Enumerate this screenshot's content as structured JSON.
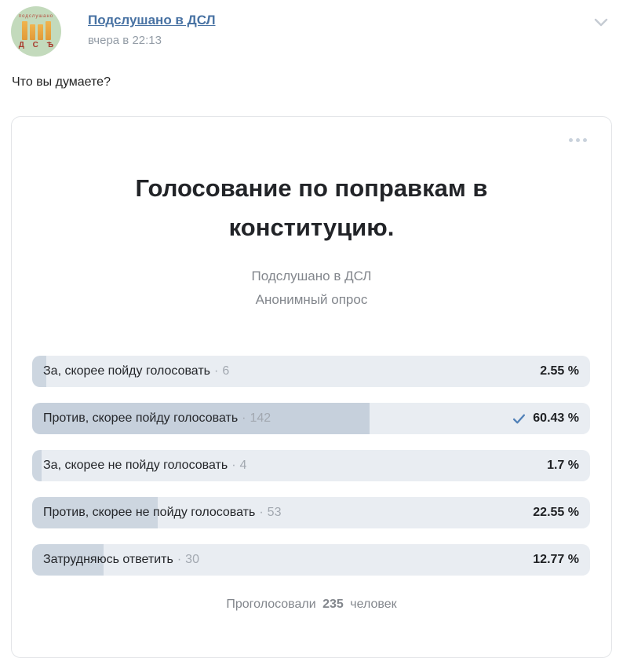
{
  "post": {
    "author": "Подслушано в ДСЛ",
    "timestamp": "вчера в 22:13",
    "text": "Что вы думаете?",
    "avatar": {
      "top_text": "подслушано",
      "bottom_text": "Д С Ѣ"
    }
  },
  "poll": {
    "title": "Голосование по поправкам в конституцию.",
    "subtitle_author": "Подслушано в ДСЛ",
    "subtitle_type": "Анонимный опрос",
    "separator": "·",
    "options": [
      {
        "label": "За, скорее пойду голосовать",
        "votes": "6",
        "percent": "2.55 %",
        "fill": 2.55,
        "selected": false
      },
      {
        "label": "Против, скорее пойду голосовать",
        "votes": "142",
        "percent": "60.43 %",
        "fill": 60.43,
        "selected": true
      },
      {
        "label": "За, скорее не пойду голосовать",
        "votes": "4",
        "percent": "1.7 %",
        "fill": 1.7,
        "selected": false
      },
      {
        "label": "Против, скорее не пойду голосовать",
        "votes": "53",
        "percent": "22.55 %",
        "fill": 22.55,
        "selected": false
      },
      {
        "label": "Затрудняюсь ответить",
        "votes": "30",
        "percent": "12.77 %",
        "fill": 12.77,
        "selected": false
      }
    ],
    "footer": {
      "prefix": "Проголосовали",
      "count": "235",
      "suffix": "человек"
    }
  },
  "icons": {
    "collapse_chevron": "chevron-down-icon",
    "menu_dots": "ellipsis-menu-icon",
    "selected_check": "check-icon"
  },
  "colors": {
    "link_blue": "#4872a3",
    "check_blue": "#5181b8",
    "row_background": "#e9edf2",
    "row_fill": "#cdd6e0",
    "muted_text": "#82868c",
    "votes_text": "#a2a8b0",
    "title_text": "#222428"
  }
}
